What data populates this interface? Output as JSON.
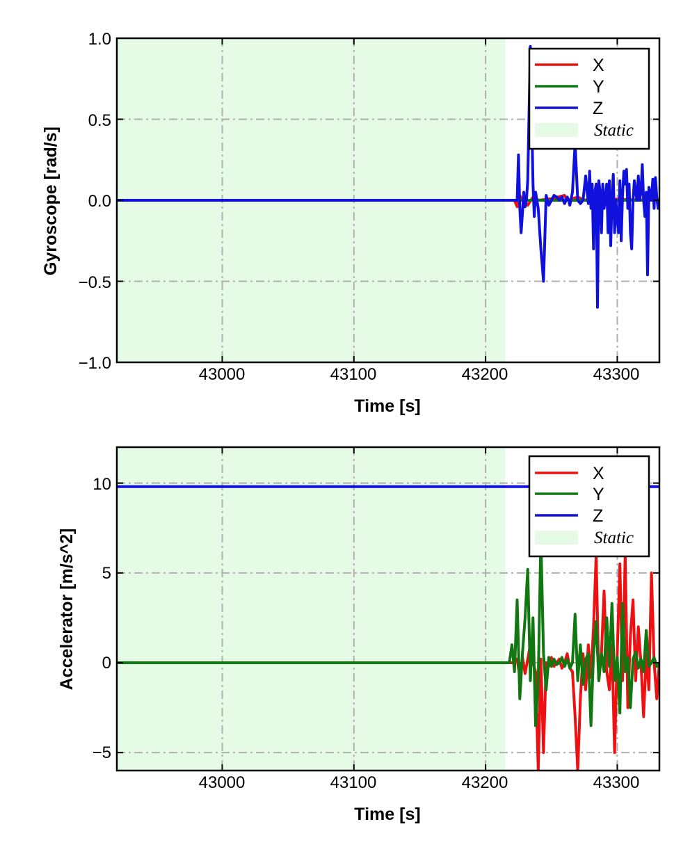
{
  "chart_data": [
    {
      "type": "line",
      "xlabel": "Time [s]",
      "ylabel": "Gyroscope [rad/s]",
      "xlim": [
        42920,
        43332
      ],
      "ylim": [
        -1.0,
        1.0
      ],
      "xticks": [
        43000,
        43100,
        43200,
        43300
      ],
      "xtick_labels": [
        "43000",
        "43100",
        "43200",
        "43300"
      ],
      "yticks": [
        -1.0,
        -0.5,
        0.0,
        0.5,
        1.0
      ],
      "ytick_labels": [
        "−1.0",
        "−0.5",
        "0.0",
        "0.5",
        "1.0"
      ],
      "grid": true,
      "legend_position": "top-right",
      "static_region": {
        "label": "Static",
        "x_start": 42920,
        "x_end": 43215,
        "color": "#e6fbe6"
      },
      "series": [
        {
          "name": "X",
          "color": "#ee1111",
          "points": [
            [
              42920,
              0.0
            ],
            [
              43215,
              0.0
            ],
            [
              43222,
              0.0
            ],
            [
              43224,
              -0.04
            ],
            [
              43226,
              0.03
            ],
            [
              43228,
              0.0
            ],
            [
              43232,
              -0.03
            ],
            [
              43236,
              0.02
            ],
            [
              43240,
              0.0
            ],
            [
              43250,
              0.01
            ],
            [
              43260,
              0.03
            ],
            [
              43262,
              0.0
            ],
            [
              43270,
              0.02
            ],
            [
              43275,
              0.0
            ],
            [
              43280,
              0.01
            ],
            [
              43332,
              0.0
            ]
          ]
        },
        {
          "name": "Y",
          "color": "#117711",
          "points": [
            [
              42920,
              0.0
            ],
            [
              43332,
              0.0
            ]
          ]
        },
        {
          "name": "Z",
          "color": "#1111dd",
          "points": [
            [
              42920,
              0.0
            ],
            [
              43220,
              0.0
            ],
            [
              43224,
              0.0
            ],
            [
              43225,
              0.28
            ],
            [
              43226,
              -0.05
            ],
            [
              43227,
              -0.2
            ],
            [
              43228,
              -0.08
            ],
            [
              43229,
              0.05
            ],
            [
              43230,
              -0.04
            ],
            [
              43231,
              0.0
            ],
            [
              43232,
              0.12
            ],
            [
              43234,
              0.95
            ],
            [
              43236,
              0.1
            ],
            [
              43237,
              -0.1
            ],
            [
              43238,
              0.05
            ],
            [
              43240,
              -0.05
            ],
            [
              43242,
              -0.3
            ],
            [
              43244,
              -0.5
            ],
            [
              43246,
              0.03
            ],
            [
              43248,
              -0.03
            ],
            [
              43250,
              0.0
            ],
            [
              43252,
              0.03
            ],
            [
              43254,
              0.02
            ],
            [
              43256,
              0.0
            ],
            [
              43258,
              0.02
            ],
            [
              43260,
              -0.02
            ],
            [
              43262,
              0.02
            ],
            [
              43263,
              0.0
            ],
            [
              43264,
              -0.03
            ],
            [
              43266,
              0.05
            ],
            [
              43268,
              0.35
            ],
            [
              43270,
              0.0
            ],
            [
              43272,
              -0.02
            ],
            [
              43274,
              0.0
            ],
            [
              43276,
              0.15
            ],
            [
              43278,
              -0.02
            ],
            [
              43279,
              0.18
            ],
            [
              43280,
              -0.05
            ],
            [
              43281,
              0.1
            ],
            [
              43282,
              -0.3
            ],
            [
              43283,
              0.05
            ],
            [
              43284,
              0.1
            ],
            [
              43285,
              -0.66
            ],
            [
              43286,
              0.12
            ],
            [
              43287,
              0.05
            ],
            [
              43288,
              -0.2
            ],
            [
              43289,
              0.1
            ],
            [
              43290,
              -0.05
            ],
            [
              43291,
              0.02
            ],
            [
              43292,
              0.1
            ],
            [
              43293,
              -0.2
            ],
            [
              43294,
              0.12
            ],
            [
              43295,
              -0.28
            ],
            [
              43296,
              0.0
            ],
            [
              43297,
              0.16
            ],
            [
              43298,
              -0.2
            ],
            [
              43299,
              0.0
            ],
            [
              43300,
              -0.12
            ],
            [
              43301,
              -0.2
            ],
            [
              43302,
              0.12
            ],
            [
              43303,
              -0.25
            ],
            [
              43304,
              0.03
            ],
            [
              43305,
              0.18
            ],
            [
              43306,
              0.1
            ],
            [
              43307,
              0.19
            ],
            [
              43308,
              -0.05
            ],
            [
              43309,
              0.1
            ],
            [
              43310,
              -0.2
            ],
            [
              43311,
              -0.3
            ],
            [
              43312,
              0.0
            ],
            [
              43313,
              0.12
            ],
            [
              43314,
              0.05
            ],
            [
              43315,
              0.0
            ],
            [
              43316,
              0.15
            ],
            [
              43317,
              0.0
            ],
            [
              43318,
              0.05
            ],
            [
              43319,
              0.22
            ],
            [
              43320,
              0.0
            ],
            [
              43321,
              -0.1
            ],
            [
              43322,
              0.05
            ],
            [
              43323,
              -0.46
            ],
            [
              43324,
              0.08
            ],
            [
              43326,
              0.0
            ],
            [
              43327,
              0.13
            ],
            [
              43328,
              -0.05
            ],
            [
              43329,
              0.14
            ],
            [
              43330,
              0.02
            ],
            [
              43331,
              -0.05
            ],
            [
              43332,
              0.0
            ]
          ]
        }
      ]
    },
    {
      "type": "line",
      "xlabel": "Time [s]",
      "ylabel": "Accelerator [m/s^2]",
      "xlim": [
        42920,
        43332
      ],
      "ylim": [
        -6,
        12
      ],
      "xticks": [
        43000,
        43100,
        43200,
        43300
      ],
      "xtick_labels": [
        "43000",
        "43100",
        "43200",
        "43300"
      ],
      "yticks": [
        -5,
        0,
        5,
        10
      ],
      "ytick_labels": [
        "−5",
        "0",
        "5",
        "10"
      ],
      "grid": true,
      "legend_position": "top-right",
      "static_region": {
        "label": "Static",
        "x_start": 42920,
        "x_end": 43215,
        "color": "#e6fbe6"
      },
      "series": [
        {
          "name": "X",
          "color": "#ee1111",
          "points": [
            [
              42920,
              0.0
            ],
            [
              43215,
              0.0
            ],
            [
              43222,
              0.0
            ],
            [
              43224,
              0.2
            ],
            [
              43226,
              -0.8
            ],
            [
              43228,
              0.3
            ],
            [
              43230,
              -0.6
            ],
            [
              43232,
              0.2
            ],
            [
              43234,
              1.0
            ],
            [
              43236,
              0.0
            ],
            [
              43238,
              -0.5
            ],
            [
              43240,
              -6.0
            ],
            [
              43242,
              0.2
            ],
            [
              43244,
              -5.0
            ],
            [
              43246,
              0.0
            ],
            [
              43248,
              -0.2
            ],
            [
              43250,
              0.3
            ],
            [
              43252,
              -0.2
            ],
            [
              43254,
              0.0
            ],
            [
              43256,
              0.2
            ],
            [
              43258,
              -0.3
            ],
            [
              43260,
              0.0
            ],
            [
              43262,
              0.5
            ],
            [
              43264,
              -0.3
            ],
            [
              43266,
              -0.5
            ],
            [
              43268,
              -3.0
            ],
            [
              43270,
              -6.0
            ],
            [
              43272,
              -2.0
            ],
            [
              43274,
              0.5
            ],
            [
              43276,
              -1.5
            ],
            [
              43278,
              1.0
            ],
            [
              43280,
              -0.8
            ],
            [
              43282,
              2.0
            ],
            [
              43284,
              6.0
            ],
            [
              43286,
              -1.0
            ],
            [
              43288,
              0.5
            ],
            [
              43290,
              4.0
            ],
            [
              43292,
              -0.5
            ],
            [
              43294,
              -1.5
            ],
            [
              43296,
              1.0
            ],
            [
              43298,
              -5.0
            ],
            [
              43300,
              0.5
            ],
            [
              43302,
              5.5
            ],
            [
              43304,
              -1.0
            ],
            [
              43306,
              6.0
            ],
            [
              43308,
              -2.5
            ],
            [
              43310,
              1.5
            ],
            [
              43312,
              3.5
            ],
            [
              43314,
              -1.0
            ],
            [
              43316,
              2.0
            ],
            [
              43318,
              0.0
            ],
            [
              43320,
              -3.0
            ],
            [
              43322,
              0.5
            ],
            [
              43324,
              -1.5
            ],
            [
              43326,
              5.0
            ],
            [
              43328,
              0.0
            ],
            [
              43330,
              -2.0
            ],
            [
              43332,
              0.0
            ]
          ]
        },
        {
          "name": "Y",
          "color": "#117711",
          "points": [
            [
              42920,
              0.0
            ],
            [
              43218,
              0.0
            ],
            [
              43220,
              1.0
            ],
            [
              43222,
              -0.5
            ],
            [
              43224,
              3.5
            ],
            [
              43226,
              -2.0
            ],
            [
              43228,
              0.5
            ],
            [
              43230,
              2.5
            ],
            [
              43232,
              5.2
            ],
            [
              43234,
              -1.0
            ],
            [
              43236,
              2.5
            ],
            [
              43238,
              -3.5
            ],
            [
              43240,
              -1.0
            ],
            [
              43242,
              7.0
            ],
            [
              43244,
              0.5
            ],
            [
              43246,
              -1.5
            ],
            [
              43248,
              0.3
            ],
            [
              43250,
              -0.2
            ],
            [
              43252,
              0.2
            ],
            [
              43254,
              -0.1
            ],
            [
              43256,
              0.0
            ],
            [
              43258,
              0.3
            ],
            [
              43260,
              -0.2
            ],
            [
              43262,
              0.2
            ],
            [
              43264,
              -0.3
            ],
            [
              43266,
              0.0
            ],
            [
              43268,
              2.7
            ],
            [
              43270,
              -1.0
            ],
            [
              43272,
              1.0
            ],
            [
              43274,
              -1.2
            ],
            [
              43276,
              0.2
            ],
            [
              43278,
              0.5
            ],
            [
              43280,
              -3.5
            ],
            [
              43282,
              0.5
            ],
            [
              43284,
              2.3
            ],
            [
              43286,
              -1.0
            ],
            [
              43288,
              0.5
            ],
            [
              43290,
              -0.5
            ],
            [
              43292,
              2.5
            ],
            [
              43294,
              -0.2
            ],
            [
              43296,
              3.3
            ],
            [
              43298,
              -1.0
            ],
            [
              43300,
              0.3
            ],
            [
              43302,
              -2.8
            ],
            [
              43304,
              3.3
            ],
            [
              43306,
              -0.5
            ],
            [
              43308,
              0.3
            ],
            [
              43310,
              -2.5
            ],
            [
              43312,
              0.2
            ],
            [
              43314,
              0.6
            ],
            [
              43316,
              -0.3
            ],
            [
              43318,
              0.2
            ],
            [
              43320,
              -0.5
            ],
            [
              43322,
              1.8
            ],
            [
              43324,
              -0.2
            ],
            [
              43326,
              0.0
            ],
            [
              43328,
              0.3
            ],
            [
              43330,
              -0.2
            ],
            [
              43332,
              0.0
            ]
          ]
        },
        {
          "name": "Z",
          "color": "#1111dd",
          "points": [
            [
              42920,
              9.8
            ],
            [
              43332,
              9.8
            ]
          ]
        }
      ]
    }
  ],
  "legend": {
    "static_label": "Static"
  }
}
